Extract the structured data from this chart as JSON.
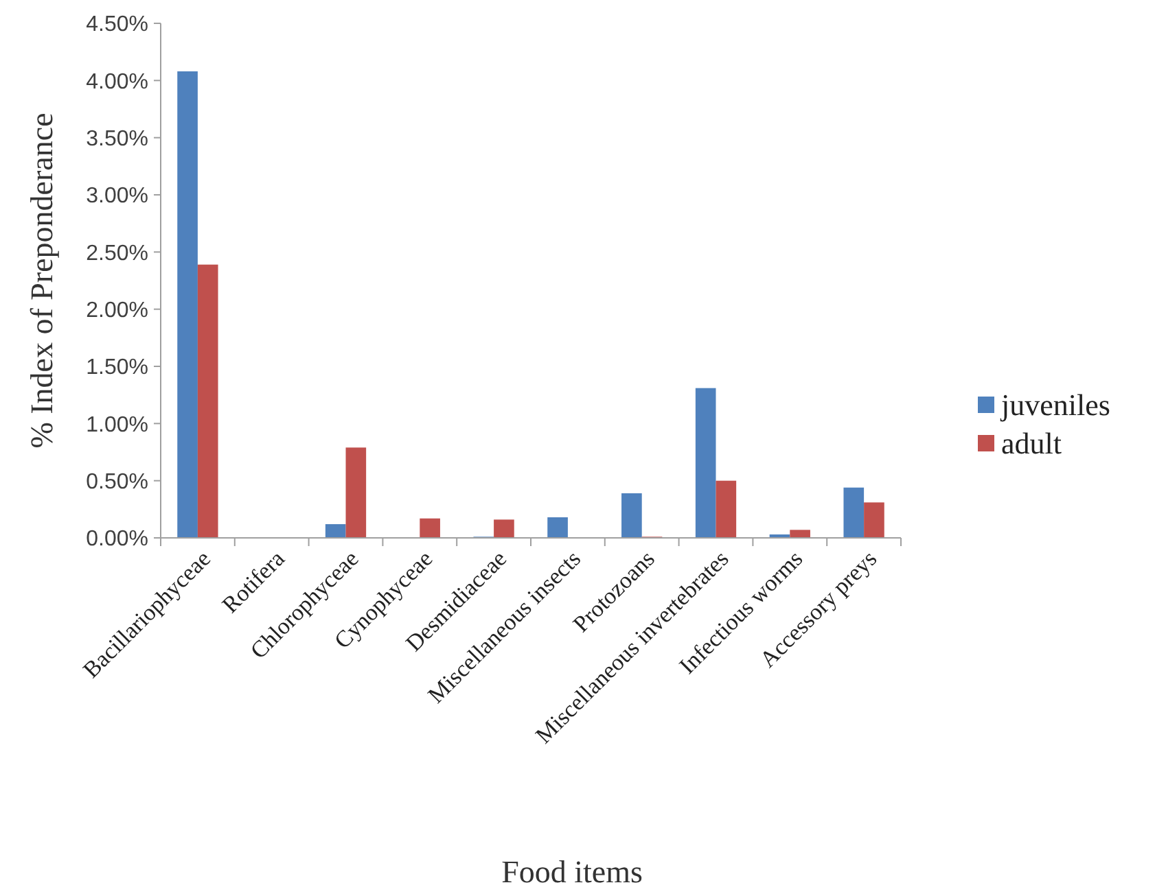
{
  "chart_data": {
    "type": "bar",
    "xlabel": "Food items",
    "ylabel": "% Index of Preponderance",
    "categories": [
      "Bacillariophyceae",
      "Rotifera",
      "Chlorophyceae",
      "Cynophyceae",
      "Desmidiaceae",
      "Miscellaneous insects",
      "Protozoans",
      "Miscellaneous invertebrates",
      "Infectious worms",
      "Accessory preys"
    ],
    "series": [
      {
        "name": "juveniles",
        "color": "#4f81bd",
        "values": [
          4.08,
          0,
          0.12,
          0,
          0.01,
          0.18,
          0.39,
          1.31,
          0.03,
          0.44
        ]
      },
      {
        "name": "adult",
        "color": "#c0504d",
        "values": [
          2.39,
          0,
          0.79,
          0.17,
          0.16,
          0,
          0.01,
          0.5,
          0.07,
          0.31
        ]
      }
    ],
    "ylim": [
      0,
      4.5
    ],
    "yticks": [
      {
        "value": 0,
        "label": "0.00%"
      },
      {
        "value": 0.5,
        "label": "0.50%"
      },
      {
        "value": 1,
        "label": "1.00%"
      },
      {
        "value": 1.5,
        "label": "1.50%"
      },
      {
        "value": 2,
        "label": "2.00%"
      },
      {
        "value": 2.5,
        "label": "2.50%"
      },
      {
        "value": 3,
        "label": "3.00%"
      },
      {
        "value": 3.5,
        "label": "3.50%"
      },
      {
        "value": 4,
        "label": "4.00%"
      },
      {
        "value": 4.5,
        "label": "4.50%"
      }
    ],
    "grid": false,
    "legend": "right"
  }
}
